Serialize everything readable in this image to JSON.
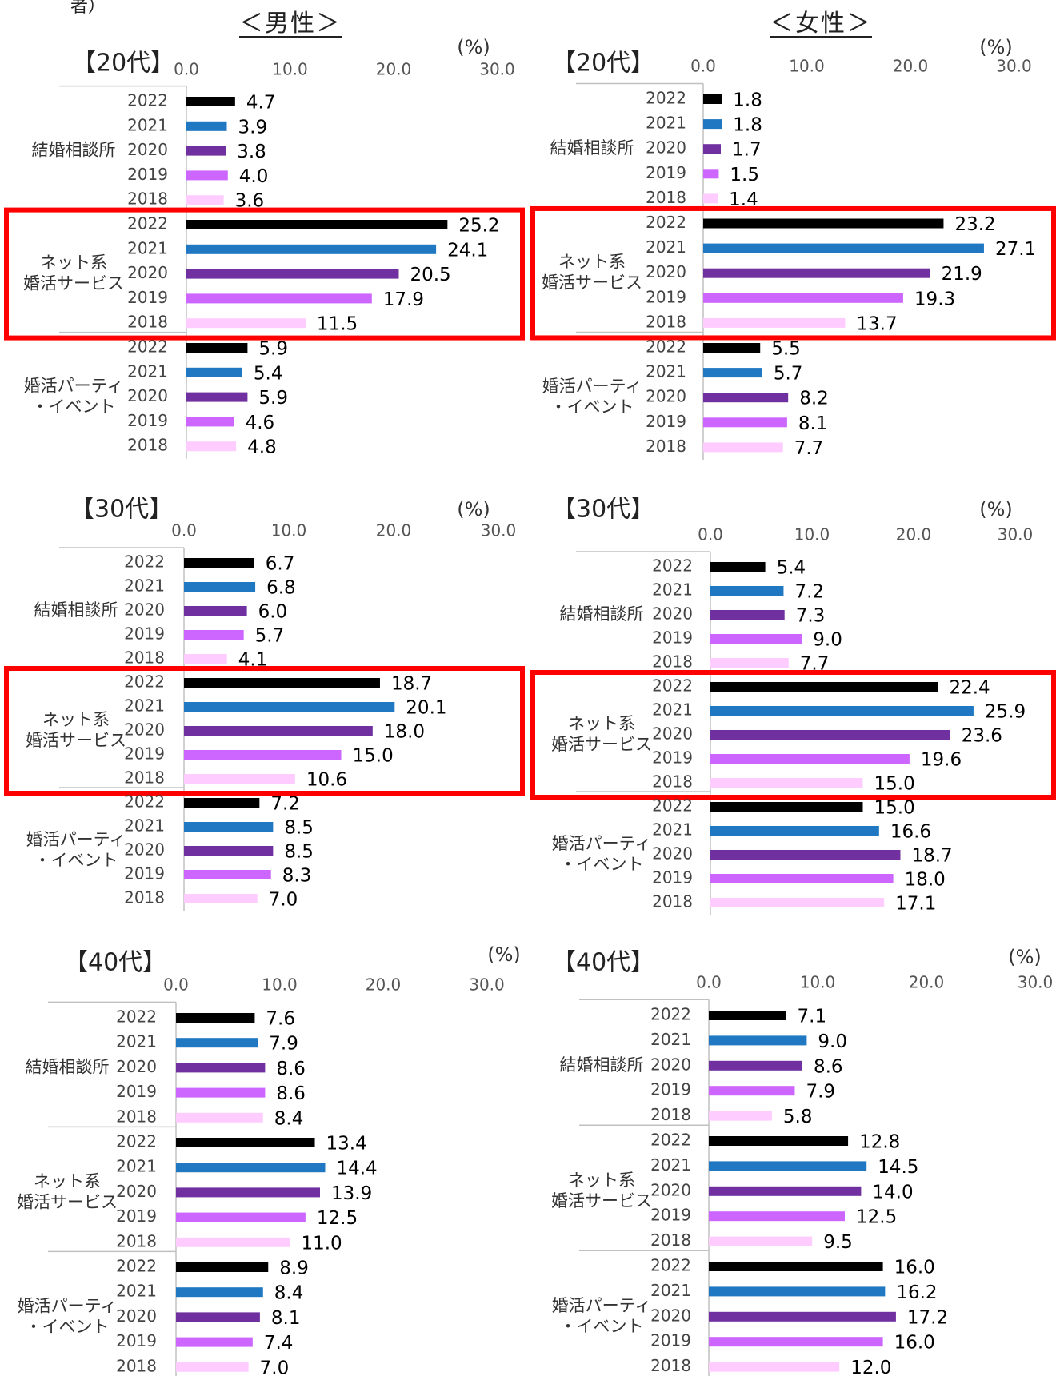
{
  "page": {
    "top_fragment": "者）",
    "gender_labels": [
      "＜男性＞",
      "＜女性＞"
    ]
  },
  "colors": {
    "2022": "#000000",
    "2021": "#1f78c1",
    "2020": "#7030a0",
    "2019": "#cc66ff",
    "2018": "#ffccff",
    "highlight": "#ff0000",
    "axis": "#c0c0c0",
    "tick_text": "#555555"
  },
  "chart_data": [
    {
      "type": "bar",
      "orientation": "horizontal",
      "gender": "男性",
      "age": "【20代】",
      "unit": "(%)",
      "xlim": [
        0,
        30
      ],
      "ticks": [
        "0.0",
        "10.0",
        "20.0",
        "30.0"
      ],
      "years": [
        "2022",
        "2021",
        "2020",
        "2019",
        "2018"
      ],
      "groups": [
        {
          "name": "結婚相談所",
          "values": [
            4.7,
            3.9,
            3.8,
            4.0,
            3.6
          ],
          "labels": [
            "4.7",
            "3.9",
            "3.8",
            "4.0",
            "3.6"
          ],
          "highlight": false
        },
        {
          "name": "ネット系\n婚活サービス",
          "values": [
            25.2,
            24.1,
            20.5,
            17.9,
            11.5
          ],
          "labels": [
            "25.2",
            "24.1",
            "20.5",
            "17.9",
            "11.5"
          ],
          "highlight": true
        },
        {
          "name": "婚活パーティ\n・イベント",
          "values": [
            5.9,
            5.4,
            5.9,
            4.6,
            4.8
          ],
          "labels": [
            "5.9",
            "5.4",
            "5.9",
            "4.6",
            "4.8"
          ],
          "highlight": false
        }
      ]
    },
    {
      "type": "bar",
      "orientation": "horizontal",
      "gender": "女性",
      "age": "【20代】",
      "unit": "(%)",
      "xlim": [
        0,
        30
      ],
      "ticks": [
        "0.0",
        "10.0",
        "20.0",
        "30.0"
      ],
      "years": [
        "2022",
        "2021",
        "2020",
        "2019",
        "2018"
      ],
      "groups": [
        {
          "name": "結婚相談所",
          "values": [
            1.8,
            1.8,
            1.7,
            1.5,
            1.4
          ],
          "labels": [
            "1.8",
            "1.8",
            "1.7",
            "1.5",
            "1.4"
          ],
          "highlight": false
        },
        {
          "name": "ネット系\n婚活サービス",
          "values": [
            23.2,
            27.1,
            21.9,
            19.3,
            13.7
          ],
          "labels": [
            "23.2",
            "27.1",
            "21.9",
            "19.3",
            "13.7"
          ],
          "highlight": true
        },
        {
          "name": "婚活パーティ\n・イベント",
          "values": [
            5.5,
            5.7,
            8.2,
            8.1,
            7.7
          ],
          "labels": [
            "5.5",
            "5.7",
            "8.2",
            "8.1",
            "7.7"
          ],
          "highlight": false
        }
      ]
    },
    {
      "type": "bar",
      "orientation": "horizontal",
      "gender": "男性",
      "age": "【30代】",
      "unit": "(%)",
      "xlim": [
        0,
        30
      ],
      "ticks": [
        "0.0",
        "10.0",
        "20.0",
        "30.0"
      ],
      "years": [
        "2022",
        "2021",
        "2020",
        "2019",
        "2018"
      ],
      "groups": [
        {
          "name": "結婚相談所",
          "values": [
            6.7,
            6.8,
            6.0,
            5.7,
            4.1
          ],
          "labels": [
            "6.7",
            "6.8",
            "6.0",
            "5.7",
            "4.1"
          ],
          "highlight": false
        },
        {
          "name": "ネット系\n婚活サービス",
          "values": [
            18.7,
            20.1,
            18.0,
            15.0,
            10.6
          ],
          "labels": [
            "18.7",
            "20.1",
            "18.0",
            "15.0",
            "10.6"
          ],
          "highlight": true
        },
        {
          "name": "婚活パーティ\n・イベント",
          "values": [
            7.2,
            8.5,
            8.5,
            8.3,
            7.0
          ],
          "labels": [
            "7.2",
            "8.5",
            "8.5",
            "8.3",
            "7.0"
          ],
          "highlight": false
        }
      ]
    },
    {
      "type": "bar",
      "orientation": "horizontal",
      "gender": "女性",
      "age": "【30代】",
      "unit": "(%)",
      "xlim": [
        0,
        30
      ],
      "ticks": [
        "0.0",
        "10.0",
        "20.0",
        "30.0"
      ],
      "years": [
        "2022",
        "2021",
        "2020",
        "2019",
        "2018"
      ],
      "groups": [
        {
          "name": "結婚相談所",
          "values": [
            5.4,
            7.2,
            7.3,
            9.0,
            7.7
          ],
          "labels": [
            "5.4",
            "7.2",
            "7.3",
            "9.0",
            "7.7"
          ],
          "highlight": false
        },
        {
          "name": "ネット系\n婚活サービス",
          "values": [
            22.4,
            25.9,
            23.6,
            19.6,
            15.0
          ],
          "labels": [
            "22.4",
            "25.9",
            "23.6",
            "19.6",
            "15.0"
          ],
          "highlight": true
        },
        {
          "name": "婚活パーティ\n・イベント",
          "values": [
            15.0,
            16.6,
            18.7,
            18.0,
            17.1
          ],
          "labels": [
            "15.0",
            "16.6",
            "18.7",
            "18.0",
            "17.1"
          ],
          "highlight": false
        }
      ]
    },
    {
      "type": "bar",
      "orientation": "horizontal",
      "gender": "男性",
      "age": "【40代】",
      "unit": "(%)",
      "xlim": [
        0,
        30
      ],
      "ticks": [
        "0.0",
        "10.0",
        "20.0",
        "30.0"
      ],
      "years": [
        "2022",
        "2021",
        "2020",
        "2019",
        "2018"
      ],
      "groups": [
        {
          "name": "結婚相談所",
          "values": [
            7.6,
            7.9,
            8.6,
            8.6,
            8.4
          ],
          "labels": [
            "7.6",
            "7.9",
            "8.6",
            "8.6",
            "8.4"
          ],
          "highlight": false
        },
        {
          "name": "ネット系\n婚活サービス",
          "values": [
            13.4,
            14.4,
            13.9,
            12.5,
            11.0
          ],
          "labels": [
            "13.4",
            "14.4",
            "13.9",
            "12.5",
            "11.0"
          ],
          "highlight": false
        },
        {
          "name": "婚活パーティ\n・イベント",
          "values": [
            8.9,
            8.4,
            8.1,
            7.4,
            7.0
          ],
          "labels": [
            "8.9",
            "8.4",
            "8.1",
            "7.4",
            "7.0"
          ],
          "highlight": false
        }
      ]
    },
    {
      "type": "bar",
      "orientation": "horizontal",
      "gender": "女性",
      "age": "【40代】",
      "unit": "(%)",
      "xlim": [
        0,
        30
      ],
      "ticks": [
        "0.0",
        "10.0",
        "20.0",
        "30.0"
      ],
      "years": [
        "2022",
        "2021",
        "2020",
        "2019",
        "2018"
      ],
      "groups": [
        {
          "name": "結婚相談所",
          "values": [
            7.1,
            9.0,
            8.6,
            7.9,
            5.8
          ],
          "labels": [
            "7.1",
            "9.0",
            "8.6",
            "7.9",
            "5.8"
          ],
          "highlight": false
        },
        {
          "name": "ネット系\n婚活サービス",
          "values": [
            12.8,
            14.5,
            14.0,
            12.5,
            9.5
          ],
          "labels": [
            "12.8",
            "14.5",
            "14.0",
            "12.5",
            "9.5"
          ],
          "highlight": false
        },
        {
          "name": "婚活パーティ\n・イベント",
          "values": [
            16.0,
            16.2,
            17.2,
            16.0,
            12.0
          ],
          "labels": [
            "16.0",
            "16.2",
            "17.2",
            "16.0",
            "12.0"
          ],
          "highlight": false
        }
      ]
    }
  ]
}
